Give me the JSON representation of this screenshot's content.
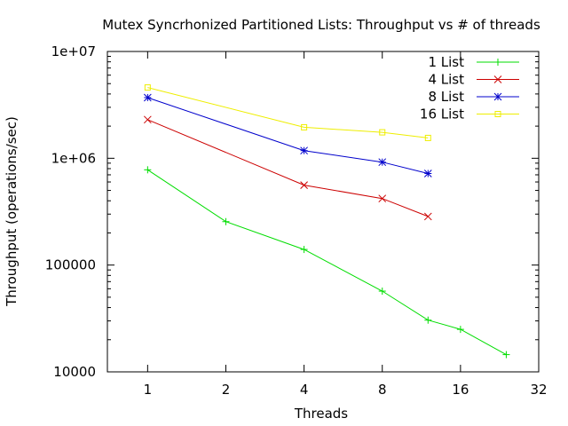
{
  "chart_data": {
    "type": "line",
    "title": "Mutex Syncrhonized Partitioned Lists: Throughput vs # of threads",
    "xlabel": "Threads",
    "ylabel": "Throughput (operations/sec)",
    "x_scale": "log2",
    "y_scale": "log10",
    "xlim": [
      0.7,
      32
    ],
    "ylim": [
      10000,
      10000000
    ],
    "x_ticks": [
      {
        "value": 1,
        "label": "1"
      },
      {
        "value": 2,
        "label": "2"
      },
      {
        "value": 4,
        "label": "4"
      },
      {
        "value": 8,
        "label": "8"
      },
      {
        "value": 16,
        "label": "16"
      },
      {
        "value": 32,
        "label": "32"
      }
    ],
    "y_ticks": [
      {
        "value": 10000,
        "label": "10000"
      },
      {
        "value": 100000,
        "label": "100000"
      },
      {
        "value": 1000000,
        "label": "1e+06"
      },
      {
        "value": 10000000,
        "label": "1e+07"
      }
    ],
    "grid": false,
    "legend_position": "top-right",
    "series": [
      {
        "name": "1 List",
        "color": "#00dd00",
        "marker": "plus",
        "points": [
          [
            1,
            780000
          ],
          [
            2,
            255000
          ],
          [
            4,
            140000
          ],
          [
            8,
            57000
          ],
          [
            12,
            30500
          ],
          [
            16,
            25000
          ],
          [
            24,
            14500
          ]
        ]
      },
      {
        "name": "4 List",
        "color": "#cc0000",
        "marker": "cross",
        "points": [
          [
            1,
            2300000
          ],
          [
            4,
            560000
          ],
          [
            8,
            420000
          ],
          [
            12,
            285000
          ]
        ]
      },
      {
        "name": "8 List",
        "color": "#0000cc",
        "marker": "star",
        "points": [
          [
            1,
            3700000
          ],
          [
            4,
            1180000
          ],
          [
            8,
            920000
          ],
          [
            12,
            720000
          ]
        ]
      },
      {
        "name": "16 List",
        "color": "#eeee00",
        "marker": "square",
        "points": [
          [
            1,
            4600000
          ],
          [
            4,
            1950000
          ],
          [
            8,
            1750000
          ],
          [
            12,
            1550000
          ]
        ]
      }
    ]
  }
}
